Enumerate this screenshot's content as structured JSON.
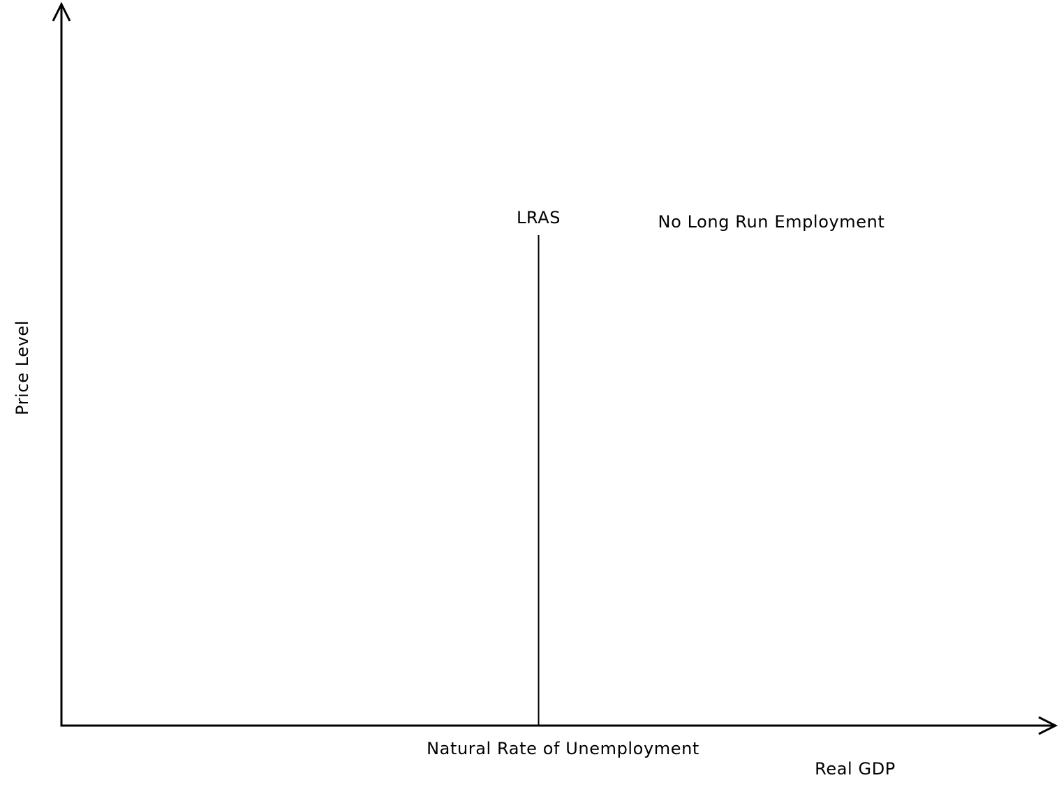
{
  "chart_data": {
    "type": "line",
    "title": "",
    "xlabel": "Real GDP",
    "ylabel": "Price Level",
    "grid": false,
    "series": [
      {
        "name": "LRAS",
        "x": [
          0.48,
          0.48
        ],
        "y": [
          0,
          1
        ]
      }
    ],
    "xlim": [
      0,
      1
    ],
    "ylim": [
      0,
      1.21
    ],
    "annotations": [
      {
        "text": "Natural Rate of Unemployment",
        "x": 0.48,
        "y": 0
      },
      {
        "text": "No Long Run Employment"
      }
    ]
  },
  "colors": {
    "axis": "#000000",
    "line": "#000000",
    "background": "#ffffff"
  }
}
